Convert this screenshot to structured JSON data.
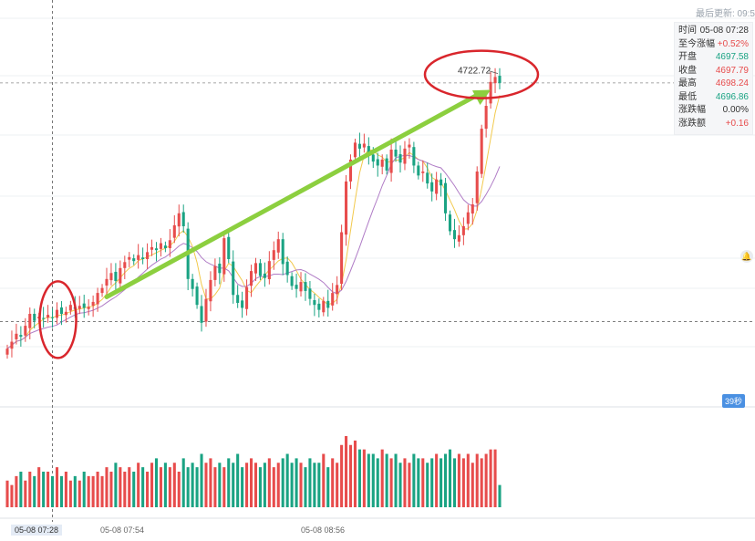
{
  "header": {
    "last_update_label": "最后更新: 09:5"
  },
  "info_panel": {
    "rows": [
      {
        "label": "时间",
        "value": "05-08 07:28",
        "tone": "neutral"
      },
      {
        "label": "至今涨幅",
        "value": "+0.52%",
        "tone": "up"
      },
      {
        "label": "开盘",
        "value": "4697.58",
        "tone": "down"
      },
      {
        "label": "收盘",
        "value": "4697.79",
        "tone": "up"
      },
      {
        "label": "最高",
        "value": "4698.24",
        "tone": "up"
      },
      {
        "label": "最低",
        "value": "4696.86",
        "tone": "down"
      },
      {
        "label": "涨跌幅",
        "value": "0.00%",
        "tone": "neutral"
      },
      {
        "label": "涨跌额",
        "value": "+0.16",
        "tone": "up"
      }
    ]
  },
  "timer_badge": "39秒",
  "chart_data": {
    "type": "candlestick",
    "annotation": {
      "text": "4722.72",
      "value": 4722.72
    },
    "x_tick_labels": [
      "05-08 07:54",
      "05-08 08:56"
    ],
    "cursor_label": "05-08 07:28",
    "colors": {
      "up": "#e74c4c",
      "down": "#1aa383",
      "ma_short": "#f2c94c",
      "ma_long": "#b07cc6",
      "arrow": "#8ccf3f",
      "circle": "#d9262c"
    },
    "close_series": [
      4694.8,
      4695.5,
      4696.3,
      4696.0,
      4697.1,
      4698.3,
      4697.6,
      4698.0,
      4697.8,
      4698.2,
      4697.9,
      4698.7,
      4698.3,
      4698.5,
      4699.2,
      4698.8,
      4699.1,
      4698.9,
      4699.0,
      4699.5,
      4700.4,
      4700.9,
      4701.8,
      4702.4,
      4701.6,
      4702.9,
      4703.5,
      4704.0,
      4703.6,
      4704.2,
      4703.8,
      4704.5,
      4705.0,
      4704.7,
      4705.4,
      4704.9,
      4705.7,
      4707.2,
      4708.4,
      4707.1,
      4701.8,
      4700.8,
      4699.2,
      4697.4,
      4699.8,
      4701.7,
      4703.1,
      4702.4,
      4705.9,
      4703.8,
      4700.2,
      4699.4,
      4698.9,
      4701.0,
      4702.6,
      4703.4,
      4702.1,
      4701.9,
      4703.6,
      4704.7,
      4705.8,
      4703.3,
      4702.2,
      4701.1,
      4700.8,
      4701.5,
      4700.6,
      4699.8,
      4699.2,
      4698.7,
      4699.6,
      4698.9,
      4700.4,
      4701.2,
      4706.5,
      4711.6,
      4713.8,
      4715.5,
      4714.9,
      4715.4,
      4714.3,
      4713.6,
      4713.2,
      4713.8,
      4712.7,
      4714.8,
      4714.1,
      4713.5,
      4714.9,
      4715.3,
      4713.2,
      4712.2,
      4712.6,
      4711.4,
      4710.6,
      4711.8,
      4711.2,
      4708.4,
      4706.6,
      4705.8,
      4706.2,
      4707.1,
      4708.5,
      4709.3,
      4712.6,
      4716.9,
      4719.2,
      4721.6,
      4722.1,
      4721.5
    ],
    "volume_series": [
      6,
      5,
      7,
      8,
      6,
      8,
      7,
      9,
      8,
      8,
      7,
      9,
      7,
      8,
      6,
      7,
      6,
      8,
      7,
      7,
      8,
      7,
      9,
      8,
      10,
      9,
      8,
      9,
      8,
      10,
      9,
      8,
      10,
      11,
      9,
      10,
      9,
      10,
      8,
      11,
      9,
      10,
      9,
      12,
      10,
      11,
      9,
      10,
      9,
      11,
      10,
      12,
      9,
      10,
      11,
      10,
      9,
      10,
      11,
      9,
      10,
      11,
      12,
      10,
      11,
      10,
      9,
      11,
      10,
      10,
      12,
      9,
      11,
      10,
      14,
      16,
      14,
      15,
      13,
      13,
      12,
      12,
      11,
      13,
      12,
      11,
      12,
      10,
      11,
      10,
      12,
      11,
      11,
      10,
      11,
      12,
      11,
      12,
      13,
      11,
      12,
      11,
      12,
      10,
      12,
      11,
      12,
      13,
      13,
      5
    ],
    "ylim": [
      4689.5,
      4728.0
    ],
    "volume_max": 16
  }
}
